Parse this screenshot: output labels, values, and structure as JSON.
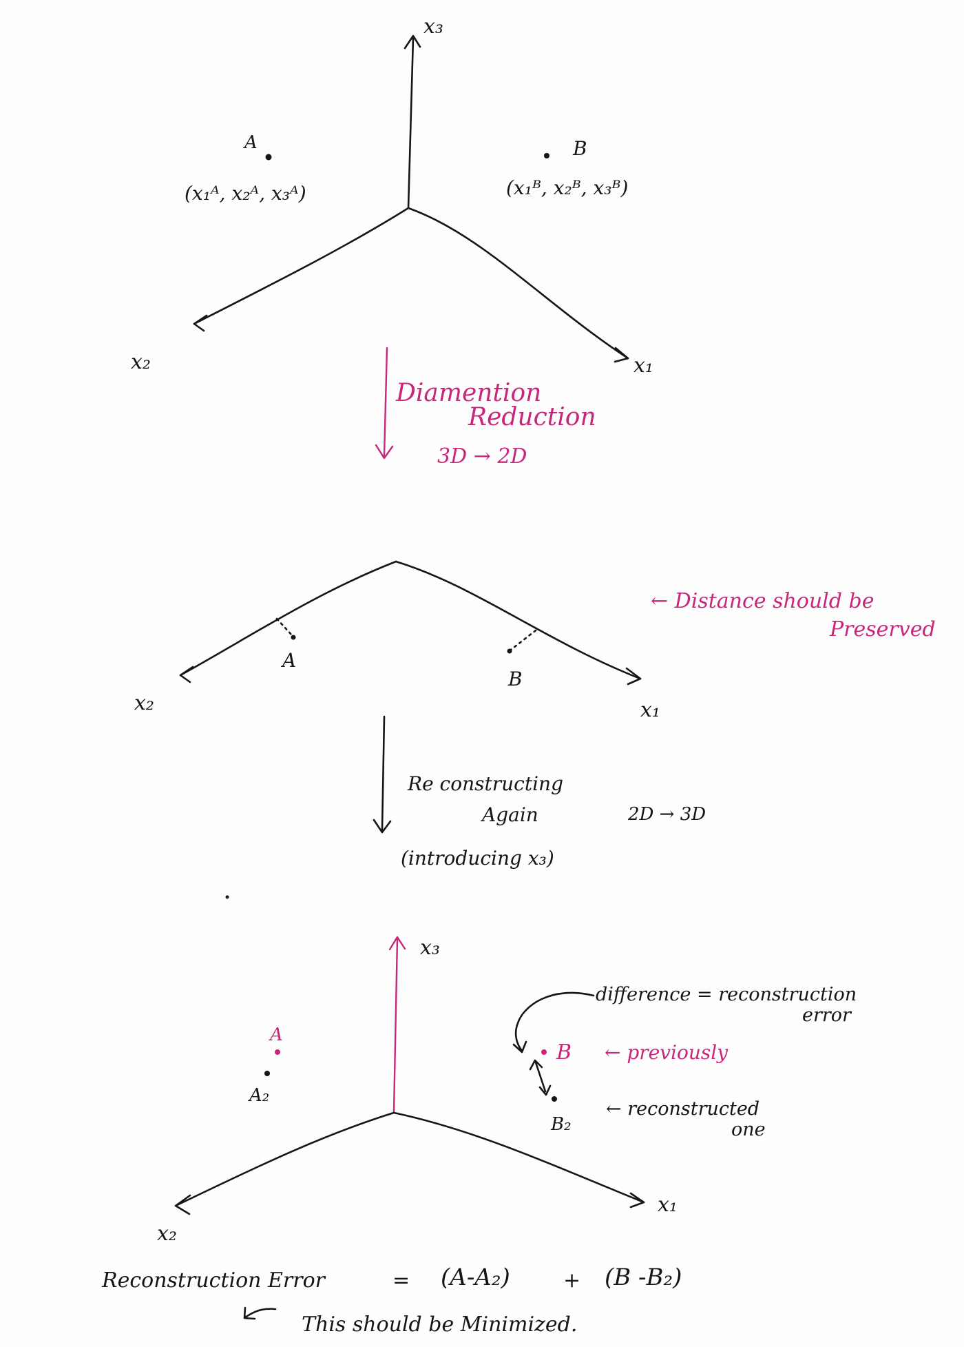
{
  "colors": {
    "ink": "#151515",
    "pink": "#c8267a",
    "paper": "#fdfdfd"
  },
  "section1": {
    "axis_x1": "x₁",
    "axis_x2": "x₂",
    "axis_x3": "x₃",
    "point_a": "A",
    "point_a_coords": "(x₁ᴬ, x₂ᴬ, x₃ᴬ)",
    "point_b": "B",
    "point_b_coords": "(x₁ᴮ, x₂ᴮ, x₃ᴮ)"
  },
  "step1": {
    "line1": "Diamention",
    "line2": "Reduction",
    "line3": "3D → 2D"
  },
  "section2": {
    "axis_x1": "x₁",
    "axis_x2": "x₂",
    "point_a": "A",
    "point_b": "B",
    "note": "← Distance should be",
    "note2": "Preserved"
  },
  "step2": {
    "line1": "Re constructing",
    "line2": "Again",
    "line3": "(introducing x₃)",
    "side": "2D → 3D"
  },
  "section3": {
    "axis_x1": "x₁",
    "axis_x2": "x₂",
    "axis_x3": "x₃",
    "point_a": "A",
    "point_a2": "A₂",
    "point_b": "B",
    "point_b2": "B₂",
    "diff_line1": "difference = reconstruction",
    "diff_line2": "error",
    "previously": "← previously",
    "reconstructed_line1": "← reconstructed",
    "reconstructed_line2": "one"
  },
  "formula": {
    "label": "Reconstruction Error",
    "eq": "=",
    "term1": "(A-A₂)",
    "plus": "+",
    "term2": "(B -B₂)",
    "note": "This should be Minimized."
  }
}
